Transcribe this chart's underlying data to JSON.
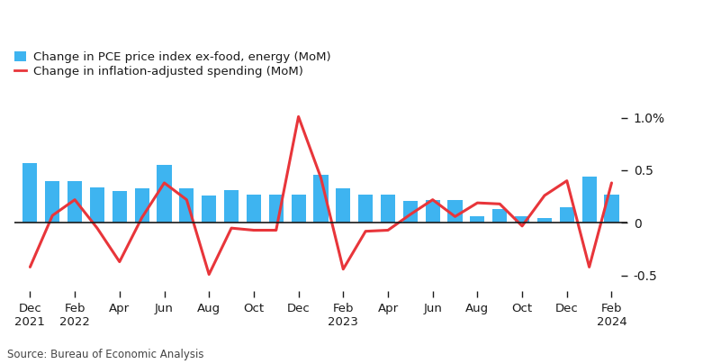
{
  "bar_color": "#3eb4f0",
  "line_color": "#e8353a",
  "background_color": "#ffffff",
  "source_text": "Source: Bureau of Economic Analysis",
  "legend_bar_label": "Change in PCE price index ex-food, energy (MoM)",
  "legend_line_label": "Change in inflation-adjusted spending (MoM)",
  "ylim": [
    -0.65,
    1.15
  ],
  "yticks": [
    -0.5,
    0.0,
    0.5,
    1.0
  ],
  "bar_values": [
    0.57,
    0.4,
    0.4,
    0.34,
    0.3,
    0.33,
    0.55,
    0.33,
    0.26,
    0.31,
    0.27,
    0.27,
    0.27,
    0.46,
    0.33,
    0.27,
    0.27,
    0.21,
    0.22,
    0.22,
    0.06,
    0.13,
    0.06,
    0.05,
    0.15,
    0.44,
    0.27
  ],
  "line_values": [
    -0.42,
    0.07,
    0.22,
    -0.05,
    -0.37,
    0.05,
    0.38,
    0.22,
    -0.49,
    -0.05,
    -0.07,
    -0.07,
    1.01,
    0.43,
    -0.44,
    -0.08,
    -0.07,
    0.08,
    0.22,
    0.06,
    0.19,
    0.18,
    -0.03,
    0.26,
    0.4,
    -0.42,
    0.38
  ]
}
